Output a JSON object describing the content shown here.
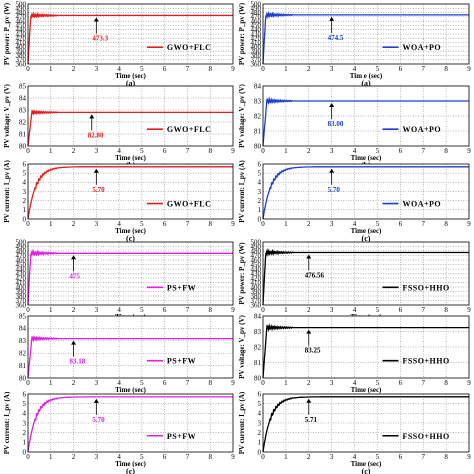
{
  "figure": {
    "x_ticks": [
      "0",
      "1",
      "2",
      "3",
      "4",
      "5",
      "6",
      "7",
      "8",
      "9"
    ],
    "xlabel": "Time (sec)",
    "xlabel_spaced": "Tim e (sec)"
  },
  "chart_data": [
    {
      "id": "gwo-power",
      "type": "line",
      "method": "GWO+FLC",
      "color": "#e02020",
      "caption": "(a)",
      "ylabel": "PV power: P_pv (W)",
      "yticks": [
        360,
        370,
        380,
        390,
        400,
        410,
        420,
        430,
        440,
        450,
        460,
        470,
        480,
        490,
        500
      ],
      "ylim": [
        360,
        500
      ],
      "steady": 473.3,
      "annotation": "473.3",
      "ann_x": 3.0
    },
    {
      "id": "woa-power",
      "type": "line",
      "method": "WOA+PO",
      "color": "#1f3fcf",
      "caption": "(a)",
      "ylabel": "PV power: P_pv (W)",
      "yticks": [
        360,
        370,
        380,
        390,
        400,
        410,
        420,
        430,
        440,
        450,
        460,
        470,
        480,
        490,
        500
      ],
      "ylim": [
        360,
        500
      ],
      "steady": 474.5,
      "annotation": "474.5",
      "ann_x": 3.0
    },
    {
      "id": "gwo-voltage",
      "type": "line",
      "method": "GWO+FLC",
      "color": "#e02020",
      "caption": "(b)",
      "ylabel": "PV voltage: V_pv (V)",
      "yticks": [
        80,
        81,
        82,
        83,
        84,
        85
      ],
      "ylim": [
        80,
        85
      ],
      "steady": 82.8,
      "annotation": "82.80",
      "ann_x": 2.8
    },
    {
      "id": "woa-voltage",
      "type": "line",
      "method": "WOA+PO",
      "color": "#1f3fcf",
      "caption": "(b)",
      "ylabel": "PV voltage: V_pv (V)",
      "yticks": [
        80,
        81,
        82,
        83,
        84
      ],
      "ylim": [
        80,
        84
      ],
      "steady": 83.0,
      "annotation": "83.00",
      "ann_x": 3.0
    },
    {
      "id": "gwo-current",
      "type": "line",
      "method": "GWO+FLC",
      "color": "#e02020",
      "caption": "(c)",
      "ylabel": "PV current: I_pv (A)",
      "yticks": [
        0,
        1,
        2,
        3,
        4,
        5,
        6
      ],
      "ylim": [
        0,
        6
      ],
      "steady": 5.7,
      "annotation": "5.70",
      "ann_x": 3.0
    },
    {
      "id": "woa-current",
      "type": "line",
      "method": "WOA+PO",
      "color": "#1f3fcf",
      "caption": "(c)",
      "ylabel": "PV current: I_pv (A)",
      "yticks": [
        0,
        1,
        2,
        3,
        4,
        5,
        6
      ],
      "ylim": [
        0,
        6
      ],
      "steady": 5.7,
      "annotation": "5.70",
      "ann_x": 3.0
    },
    {
      "id": "ps-power",
      "type": "line",
      "method": "PS+FW",
      "color": "#e020e0",
      "caption": "(a)",
      "ylabel": "",
      "yticks": [
        360,
        370,
        380,
        390,
        400,
        410,
        420,
        430,
        440,
        450,
        460,
        470,
        480,
        490,
        500
      ],
      "ylim": [
        360,
        500
      ],
      "steady": 475,
      "annotation": "475",
      "ann_x": 2.0
    },
    {
      "id": "fsso-power",
      "type": "line",
      "method": "FSSO+HHO",
      "color": "#000000",
      "caption": "(a)",
      "ylabel": "PV power: P_pv (W)",
      "yticks": [
        360,
        370,
        380,
        390,
        400,
        410,
        420,
        430,
        440,
        450,
        460,
        470,
        480,
        490,
        500
      ],
      "ylim": [
        360,
        500
      ],
      "steady": 476.56,
      "annotation": "476.56",
      "ann_x": 2.0
    },
    {
      "id": "ps-voltage",
      "type": "line",
      "method": "PS+FW",
      "color": "#e020e0",
      "caption": "(b)",
      "ylabel": "",
      "yticks": [
        80,
        81,
        82,
        83,
        84,
        85
      ],
      "ylim": [
        80,
        85
      ],
      "steady": 83.18,
      "annotation": "83.18",
      "ann_x": 2.0
    },
    {
      "id": "fsso-voltage",
      "type": "line",
      "method": "FSSO+HHO",
      "color": "#000000",
      "caption": "(b)",
      "ylabel": "PV voltage: V_pv (V)",
      "yticks": [
        80,
        81,
        82,
        83,
        84
      ],
      "ylim": [
        80,
        84
      ],
      "steady": 83.25,
      "annotation": "83.25",
      "ann_x": 2.0
    },
    {
      "id": "ps-current",
      "type": "line",
      "method": "PS+FW",
      "color": "#e020e0",
      "caption": "(c)",
      "ylabel": "PV current: I_pv (A)",
      "yticks": [
        0,
        1,
        2,
        3,
        4,
        5,
        6
      ],
      "ylim": [
        0,
        6
      ],
      "steady": 5.7,
      "annotation": "5.70",
      "ann_x": 3.0
    },
    {
      "id": "fsso-current",
      "type": "line",
      "method": "FSSO+HHO",
      "color": "#000000",
      "caption": "(c)",
      "ylabel": "PV current: I_pv (A)",
      "yticks": [
        0,
        1,
        2,
        3,
        4,
        5,
        6
      ],
      "ylim": [
        0,
        6
      ],
      "steady": 5.71,
      "annotation": "5.71",
      "ann_x": 2.0
    }
  ]
}
